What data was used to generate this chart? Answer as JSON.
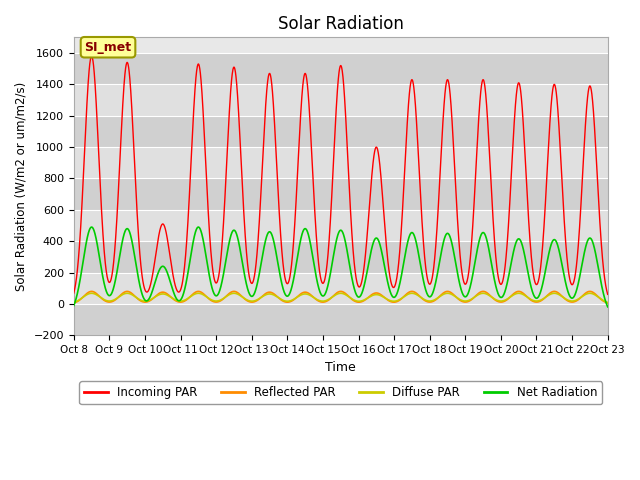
{
  "title": "Solar Radiation",
  "xlabel": "Time",
  "ylabel": "Solar Radiation (W/m2 or um/m2/s)",
  "ylim": [
    -200,
    1700
  ],
  "yticks": [
    -200,
    0,
    200,
    400,
    600,
    800,
    1000,
    1200,
    1400,
    1600
  ],
  "xlim": [
    0,
    15
  ],
  "xtick_labels": [
    "Oct 8",
    "Oct 9",
    "Oct 10",
    "Oct 11",
    "Oct 12",
    "Oct 13",
    "Oct 14",
    "Oct 15",
    "Oct 16",
    "Oct 17",
    "Oct 18",
    "Oct 19",
    "Oct 20",
    "Oct 21",
    "Oct 22",
    "Oct 23"
  ],
  "colors": {
    "incoming": "#ff0000",
    "reflected": "#ff8c00",
    "diffuse": "#cccc00",
    "net": "#00cc00"
  },
  "legend_label": "SI_met",
  "legend_box_color": "#ffff99",
  "legend_box_edge": "#999900",
  "plot_bg": "#e8e8e8",
  "incoming_peaks": [
    1580,
    1540,
    510,
    1530,
    1510,
    1470,
    1470,
    1520,
    1000,
    1430,
    1430,
    1430,
    1410,
    1400,
    1390
  ],
  "net_peaks": [
    490,
    480,
    240,
    490,
    470,
    460,
    480,
    470,
    420,
    455,
    450,
    455,
    415,
    410,
    420
  ],
  "reflected_peaks": [
    80,
    80,
    75,
    80,
    80,
    75,
    75,
    80,
    70,
    80,
    80,
    80,
    80,
    80,
    80
  ],
  "night_net": -75.0
}
